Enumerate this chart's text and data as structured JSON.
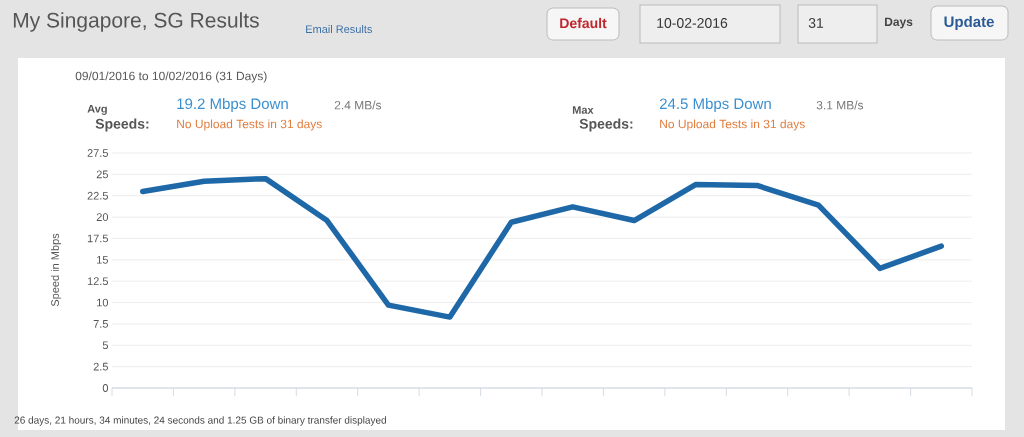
{
  "chart_data": {
    "type": "line",
    "title": "My Singapore, SG Results",
    "subtitle": "09/01/2016 to 10/02/2016 (31 Days)",
    "ylabel": "Speed in Mbps",
    "annotations": [
      "Email Results",
      "Default",
      "10-02-2016",
      "31",
      "Days",
      "Update",
      "Avg",
      "Speeds:",
      "19.2 Mbps Down",
      "2.4 MB/s",
      "No Upload Tests in 31 days",
      "Max",
      "Speeds:",
      "24.5 Mbps Down",
      "3.1 MB/s",
      "No Upload Tests in 31 days",
      "26 days, 21 hours, 34 minutes, 24 seconds and 1.25 GB of binary transfer displayed"
    ],
    "categories": [
      null,
      null,
      null,
      null,
      null,
      null,
      null,
      null,
      null,
      null,
      null,
      null,
      null,
      null
    ],
    "series": [
      {
        "color": "#1f68a8",
        "values": [
          23,
          24.2,
          24.5,
          19.6,
          9.7,
          8.3,
          19.4,
          21.2,
          19.6,
          23.8,
          23.7,
          21.4,
          14,
          16.6
        ]
      }
    ],
    "ylim": [
      0,
      27.5
    ],
    "yticks": [
      0,
      2.5,
      5,
      7.5,
      10,
      12.5,
      15,
      17.5,
      20,
      22.5,
      25,
      27.5
    ],
    "grid": "y",
    "tick_labels": "y",
    "line_style": "solid"
  }
}
